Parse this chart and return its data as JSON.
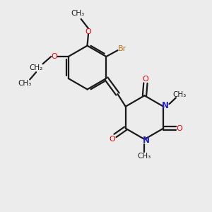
{
  "bg_color": "#ececec",
  "bond_color": "#1a1a1a",
  "oxygen_color": "#ee0000",
  "nitrogen_color": "#2222cc",
  "bromine_color": "#b87020",
  "fig_width": 3.0,
  "fig_height": 3.0,
  "dpi": 100,
  "xlim": [
    0,
    10
  ],
  "ylim": [
    0,
    10
  ]
}
